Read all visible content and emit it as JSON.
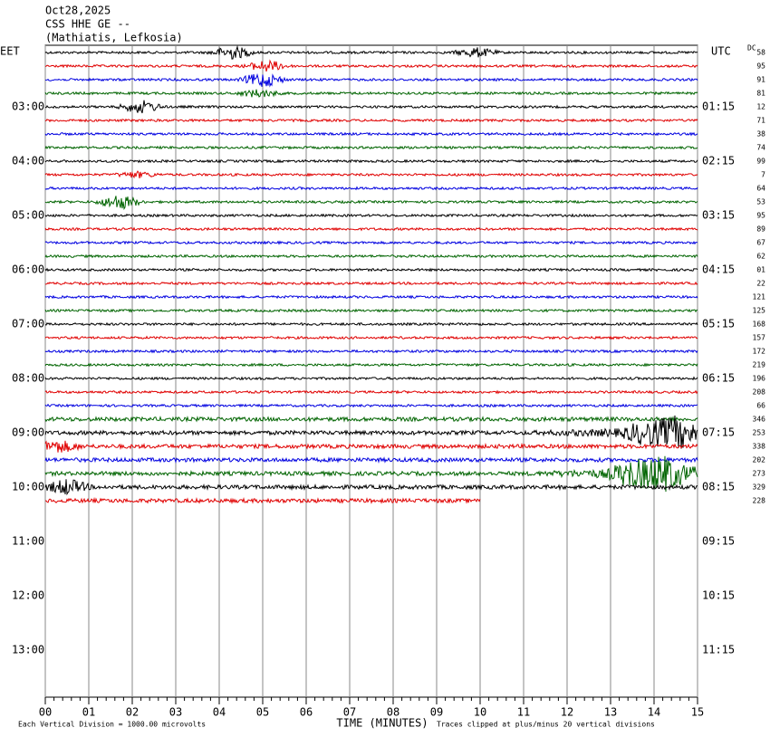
{
  "header": {
    "line1": "Oct28,2025",
    "line2": "CSS HHE GE --",
    "line3": "(Mathiatis, Lefkosia)"
  },
  "left_zone": "EET",
  "right_zone": "UTC",
  "dc_label": "DC",
  "left_times": [
    "03:00",
    "04:00",
    "05:00",
    "06:00",
    "07:00",
    "08:00",
    "09:00",
    "10:00",
    "11:00",
    "12:00",
    "13:00"
  ],
  "right_times": [
    "01:15",
    "02:15",
    "03:15",
    "04:15",
    "05:15",
    "06:15",
    "07:15",
    "08:15",
    "09:15",
    "10:15",
    "11:15"
  ],
  "dc_values": [
    "58",
    "95",
    "91",
    "81",
    "12",
    "71",
    "38",
    "74",
    "99",
    "7",
    "64",
    "53",
    "95",
    "89",
    "67",
    "62",
    "01",
    "22",
    "121",
    "125",
    "168",
    "157",
    "172",
    "219",
    "196",
    "208",
    "66",
    "346",
    "253",
    "338",
    "202",
    "273",
    "329",
    "228"
  ],
  "x_ticks": [
    "00",
    "01",
    "02",
    "03",
    "04",
    "05",
    "06",
    "07",
    "08",
    "09",
    "10",
    "11",
    "12",
    "13",
    "14",
    "15"
  ],
  "x_label": "TIME (MINUTES)",
  "footer_left": "Each Vertical Division = 1000.00 microvolts",
  "footer_right": "Traces clipped at plus/minus 20 vertical divisions",
  "trace_colors": [
    "#000000",
    "#e00000",
    "#0000e0",
    "#006400"
  ]
}
